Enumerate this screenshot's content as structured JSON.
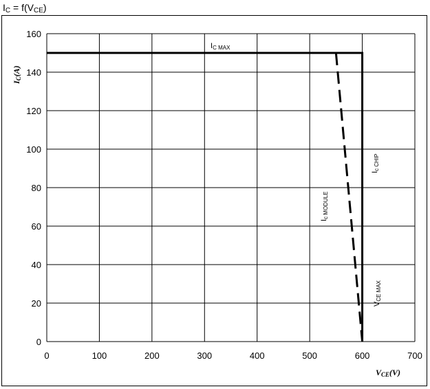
{
  "page": {
    "heading_main": "I",
    "heading_sub": "C",
    "heading_mid": " = f(V",
    "heading_sub2": "CE",
    "heading_end": ")"
  },
  "chart_data": {
    "type": "line",
    "title": "IC = f(VCE)",
    "xlabel": "V CE (V)",
    "ylabel": "I C (A)",
    "xlim": [
      0,
      700
    ],
    "ylim": [
      0,
      160
    ],
    "x_ticks": [
      0,
      100,
      200,
      300,
      400,
      500,
      600,
      700
    ],
    "y_ticks": [
      0,
      20,
      40,
      60,
      80,
      100,
      120,
      140,
      160
    ],
    "grid": true,
    "series": [
      {
        "name": "IC CHIP",
        "style": "solid",
        "x": [
          0,
          600,
          600
        ],
        "y": [
          150,
          150,
          0
        ]
      },
      {
        "name": "IC MODULE",
        "style": "dashed",
        "x": [
          550,
          600
        ],
        "y": [
          150,
          0
        ]
      }
    ],
    "annotations": {
      "ic_max": {
        "main": "I",
        "sub": "C MAX"
      },
      "ic_chip": {
        "main": "I",
        "sub": "c CHIP"
      },
      "ic_module": {
        "main": "I",
        "sub": "c  MODULE"
      },
      "vce_max": {
        "main": "V",
        "sub": "CE MAX"
      }
    },
    "axis_labels": {
      "y_main": "I",
      "y_sub": "C",
      "y_unit": "(A)",
      "x_main": "V",
      "x_sub": "CE",
      "x_unit": "(V)"
    }
  }
}
